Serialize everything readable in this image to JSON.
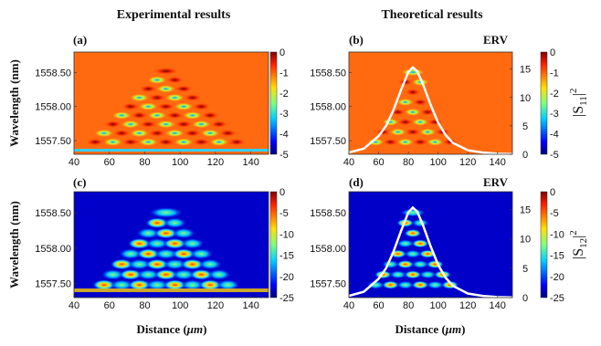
{
  "headers": {
    "left": "Experimental results",
    "right": "Theoretical results"
  },
  "panel_labels": [
    "(a)",
    "(b)",
    "(c)",
    "(d)"
  ],
  "erv_label": "ERV",
  "ylabel": "Wavelength (nm)",
  "xlabel": "Distance (",
  "xlabel_unit": "μm",
  "xlabel_close": ")",
  "s11_label": {
    "main": "|S",
    "sub": "11",
    "close": "|",
    "sup": "2"
  },
  "s12_label": {
    "main": "|S",
    "sub": "12",
    "close": "|",
    "sup": "2"
  },
  "chart_data": [
    {
      "type": "heatmap",
      "panel": "(a)",
      "title": "Experimental results",
      "xlabel": "",
      "ylabel": "Wavelength (nm)",
      "xlim": [
        40,
        150
      ],
      "ylim": [
        1557.3,
        1558.8
      ],
      "xticks": [
        "40",
        "60",
        "80",
        "100",
        "120",
        "140"
      ],
      "yticks": [
        "1557.50",
        "1558.00",
        "1558.50"
      ],
      "colorbar": {
        "range": [
          -5,
          0
        ],
        "ticks": [
          "0",
          "-1",
          "-2",
          "-3",
          "-4",
          "-5"
        ]
      }
    },
    {
      "type": "heatmap",
      "panel": "(b)",
      "title": "Theoretical results",
      "xlabel": "",
      "ylabel": "",
      "xlim": [
        40,
        150
      ],
      "ylim": [
        1557.3,
        1558.8
      ],
      "xticks": [
        "40",
        "60",
        "80",
        "100",
        "120",
        "140"
      ],
      "yticks": [
        "1557.50",
        "1558.00",
        "1558.50"
      ],
      "colorbar": {
        "range": [
          -5,
          0
        ],
        "ticks": [
          "0",
          "-1",
          "-2",
          "-3",
          "-4",
          "-5"
        ]
      },
      "erv_axis": {
        "ticks": [
          "0",
          "5",
          "10",
          "15"
        ]
      },
      "series": [
        {
          "name": "ERV",
          "x": [
            40,
            50,
            60,
            65,
            70,
            75,
            80,
            83,
            86,
            90,
            95,
            100,
            105,
            110,
            120,
            130,
            140,
            150
          ],
          "erv": [
            0.3,
            1.0,
            3.2,
            5.0,
            7.8,
            11.3,
            14.5,
            15.3,
            14.6,
            12.2,
            8.7,
            5.6,
            3.4,
            2.0,
            0.7,
            0.3,
            0.1,
            0.05
          ]
        }
      ]
    },
    {
      "type": "heatmap",
      "panel": "(c)",
      "xlabel": "Distance (μm)",
      "ylabel": "Wavelength (nm)",
      "xlim": [
        40,
        150
      ],
      "ylim": [
        1557.3,
        1558.8
      ],
      "xticks": [
        "40",
        "60",
        "80",
        "100",
        "120",
        "140"
      ],
      "yticks": [
        "1557.50",
        "1558.00",
        "1558.50"
      ],
      "colorbar": {
        "range": [
          -25,
          0
        ],
        "ticks": [
          "0",
          "-5",
          "-10",
          "-15",
          "-20",
          "-25"
        ]
      }
    },
    {
      "type": "heatmap",
      "panel": "(d)",
      "xlabel": "Distance (μm)",
      "ylabel": "",
      "xlim": [
        40,
        150
      ],
      "ylim": [
        1557.3,
        1558.8
      ],
      "xticks": [
        "40",
        "60",
        "80",
        "100",
        "120",
        "140"
      ],
      "yticks": [
        "1557.50",
        "1558.00",
        "1558.50"
      ],
      "colorbar": {
        "range": [
          -25,
          0
        ],
        "ticks": [
          "0",
          "-5",
          "-10",
          "-15",
          "-20",
          "-25"
        ]
      },
      "erv_axis": {
        "ticks": [
          "0",
          "5",
          "10",
          "15"
        ]
      },
      "series": [
        {
          "name": "ERV",
          "x": [
            40,
            50,
            60,
            65,
            70,
            75,
            80,
            83,
            86,
            90,
            95,
            100,
            105,
            110,
            120,
            130,
            140,
            150
          ],
          "erv": [
            0.3,
            1.0,
            3.2,
            5.0,
            7.8,
            11.3,
            14.5,
            15.3,
            14.6,
            12.2,
            8.7,
            5.6,
            3.4,
            2.0,
            0.7,
            0.3,
            0.1,
            0.05
          ]
        }
      ]
    }
  ]
}
